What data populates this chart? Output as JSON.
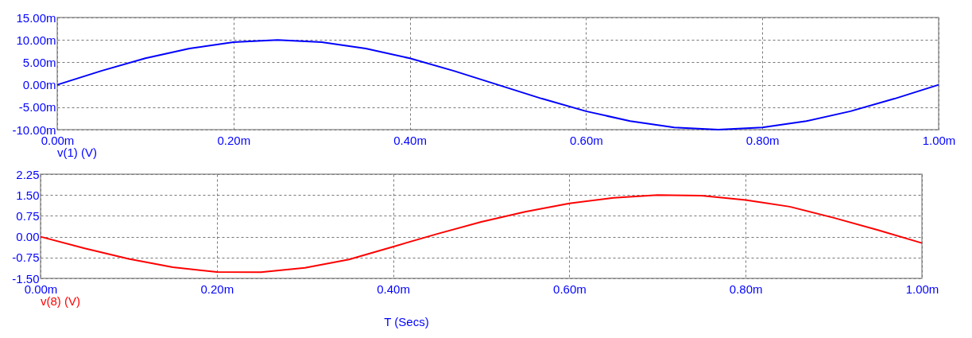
{
  "chart_data": [
    {
      "type": "line",
      "x": [
        0,
        0.05,
        0.1,
        0.15,
        0.2,
        0.25,
        0.3,
        0.35,
        0.4,
        0.45,
        0.5,
        0.55,
        0.6,
        0.65,
        0.7,
        0.75,
        0.8,
        0.85,
        0.9,
        0.95,
        1.0
      ],
      "series": [
        {
          "name": "v(1) (V)",
          "color": "#0000ff",
          "values": [
            0,
            3.1,
            5.9,
            8.1,
            9.5,
            10.0,
            9.5,
            8.1,
            5.9,
            3.1,
            0,
            -3.1,
            -5.9,
            -8.1,
            -9.5,
            -10.0,
            -9.5,
            -8.1,
            -5.9,
            -3.1,
            0
          ]
        }
      ],
      "xlim": [
        0,
        1.0
      ],
      "xticks": [
        {
          "value": 0,
          "label": "0.00m"
        },
        {
          "value": 0.2,
          "label": "0.20m"
        },
        {
          "value": 0.4,
          "label": "0.40m"
        },
        {
          "value": 0.6,
          "label": "0.60m"
        },
        {
          "value": 0.8,
          "label": "0.80m"
        },
        {
          "value": 1.0,
          "label": "1.00m"
        }
      ],
      "ylim": [
        -10,
        15
      ],
      "yticks": [
        {
          "value": -10,
          "label": "-10.00m"
        },
        {
          "value": -5,
          "label": "-5.00m"
        },
        {
          "value": 0,
          "label": "0.00m"
        },
        {
          "value": 5,
          "label": "5.00m"
        },
        {
          "value": 10,
          "label": "10.00m"
        },
        {
          "value": 15,
          "label": "15.00m"
        }
      ],
      "grid": true,
      "line_style": "solid"
    },
    {
      "type": "line",
      "x": [
        0,
        0.05,
        0.1,
        0.15,
        0.2,
        0.25,
        0.3,
        0.35,
        0.4,
        0.45,
        0.5,
        0.55,
        0.6,
        0.65,
        0.7,
        0.75,
        0.8,
        0.85,
        0.9,
        0.95,
        1.0
      ],
      "series": [
        {
          "name": "v(8) (V)",
          "color": "#ff0000",
          "values": [
            0,
            -0.42,
            -0.8,
            -1.1,
            -1.27,
            -1.28,
            -1.12,
            -0.82,
            -0.36,
            0.1,
            0.53,
            0.9,
            1.2,
            1.4,
            1.5,
            1.48,
            1.32,
            1.08,
            0.68,
            0.24,
            -0.23
          ]
        }
      ],
      "xlabel": "T (Secs)",
      "xlim": [
        0,
        1.0
      ],
      "xticks": [
        {
          "value": 0,
          "label": "0.00m"
        },
        {
          "value": 0.2,
          "label": "0.20m"
        },
        {
          "value": 0.4,
          "label": "0.40m"
        },
        {
          "value": 0.6,
          "label": "0.60m"
        },
        {
          "value": 0.8,
          "label": "0.80m"
        },
        {
          "value": 1.0,
          "label": "1.00m"
        }
      ],
      "ylim": [
        -1.5,
        2.25
      ],
      "yticks": [
        {
          "value": -1.5,
          "label": "-1.50"
        },
        {
          "value": -0.75,
          "label": "-0.75"
        },
        {
          "value": 0,
          "label": "0.00"
        },
        {
          "value": 0.75,
          "label": "0.75"
        },
        {
          "value": 1.5,
          "label": "1.50"
        },
        {
          "value": 2.25,
          "label": "2.25"
        }
      ],
      "grid": true,
      "line_style": "solid"
    }
  ]
}
